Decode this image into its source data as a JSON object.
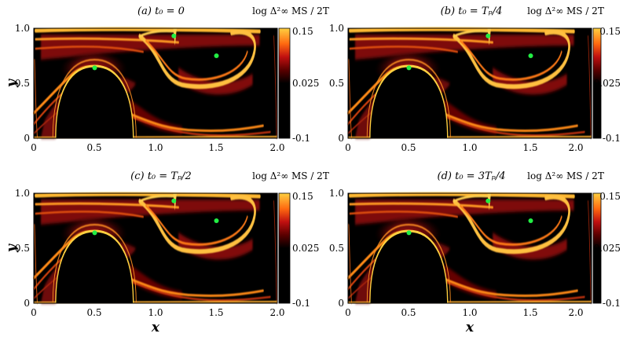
{
  "chart_data": [
    {
      "type": "heatmap",
      "title": "(a) t₀ = 0",
      "xlabel": "",
      "ylabel": "y",
      "xlim": [
        0,
        2.0
      ],
      "ylim": [
        0,
        1.0
      ],
      "x_ticks": [
        "0",
        "0.5",
        "1.0",
        "1.5",
        "2.0"
      ],
      "y_ticks": [
        "0",
        "0.5",
        "1.0"
      ],
      "colorbar": {
        "label": "log Δ²∞ MS / 2T",
        "range": [
          -0.1,
          0.15
        ],
        "ticks": [
          "-0.1",
          "0.025",
          "0.15"
        ]
      },
      "points": [
        {
          "x": 0.5,
          "y": 0.64
        },
        {
          "x": 1.15,
          "y": 0.93
        },
        {
          "x": 1.5,
          "y": 0.75
        }
      ]
    },
    {
      "type": "heatmap",
      "title": "(b) t₀ = Tₚ/4",
      "xlabel": "",
      "ylabel": "",
      "xlim": [
        0,
        2.0
      ],
      "ylim": [
        0,
        1.0
      ],
      "x_ticks": [
        "0",
        "0.5",
        "1.0",
        "1.5",
        "2.0"
      ],
      "y_ticks": [
        "0",
        "0.5",
        "1.0"
      ],
      "colorbar": {
        "label": "log Δ²∞ MS / 2T",
        "range": [
          -0.1,
          0.15
        ],
        "ticks": [
          "-0.1",
          "0.025",
          "0.15"
        ]
      },
      "points": [
        {
          "x": 0.5,
          "y": 0.64
        },
        {
          "x": 1.15,
          "y": 0.93
        },
        {
          "x": 1.5,
          "y": 0.75
        }
      ]
    },
    {
      "type": "heatmap",
      "title": "(c) t₀ = Tₚ/2",
      "xlabel": "x",
      "ylabel": "y",
      "xlim": [
        0,
        2.0
      ],
      "ylim": [
        0,
        1.0
      ],
      "x_ticks": [
        "0",
        "0.5",
        "1.0",
        "1.5",
        "2.0"
      ],
      "y_ticks": [
        "0",
        "0.5",
        "1.0"
      ],
      "colorbar": {
        "label": "log Δ²∞ MS / 2T",
        "range": [
          -0.1,
          0.15
        ],
        "ticks": [
          "-0.1",
          "0.025",
          "0.15"
        ]
      },
      "points": [
        {
          "x": 0.5,
          "y": 0.64
        },
        {
          "x": 1.15,
          "y": 0.93
        },
        {
          "x": 1.5,
          "y": 0.75
        }
      ]
    },
    {
      "type": "heatmap",
      "title": "(d) t₀ = 3Tₚ/4",
      "xlabel": "x",
      "ylabel": "",
      "xlim": [
        0,
        2.0
      ],
      "ylim": [
        0,
        1.0
      ],
      "x_ticks": [
        "0",
        "0.5",
        "1.0",
        "1.5",
        "2.0"
      ],
      "y_ticks": [
        "0",
        "0.5",
        "1.0"
      ],
      "colorbar": {
        "label": "log Δ²∞ MS / 2T",
        "range": [
          -0.1,
          0.15
        ],
        "ticks": [
          "-0.1",
          "0.025",
          "0.15"
        ]
      },
      "points": [
        {
          "x": 0.5,
          "y": 0.64
        },
        {
          "x": 1.15,
          "y": 0.93
        },
        {
          "x": 1.5,
          "y": 0.75
        }
      ]
    }
  ],
  "colors": {
    "point": "#22ee44",
    "low": "#000000",
    "mid": "#c01010",
    "high": "#ffd040"
  }
}
